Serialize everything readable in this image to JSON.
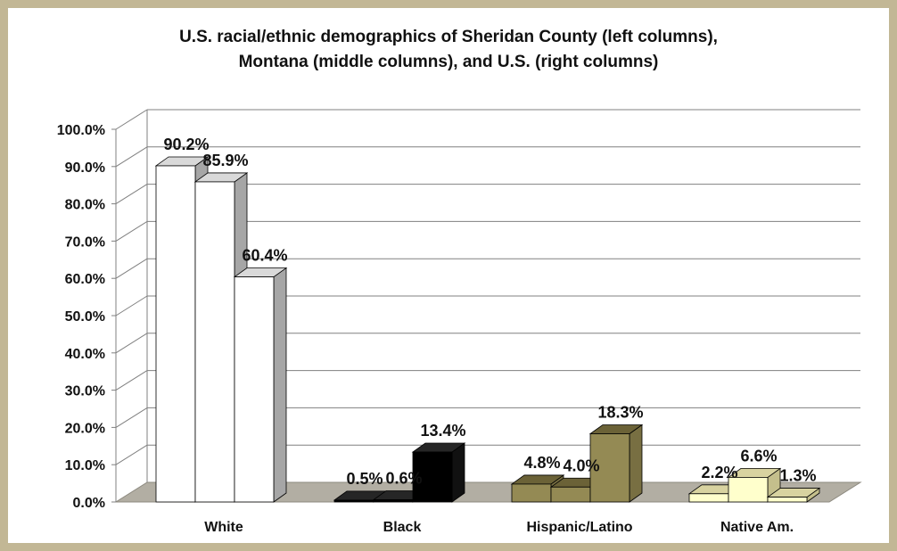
{
  "chart_data": {
    "type": "bar",
    "title_line1": "U.S. racial/ethnic demographics of Sheridan County (left columns),",
    "title_line2": "Montana (middle columns), and U.S. (right columns)",
    "categories": [
      "White",
      "Black",
      "Hispanic/Latino",
      "Native Am."
    ],
    "series": [
      {
        "values": [
          90.2,
          0.5,
          4.8,
          2.2
        ]
      },
      {
        "values": [
          85.9,
          0.6,
          4.0,
          6.6
        ]
      },
      {
        "values": [
          60.4,
          13.4,
          18.3,
          1.3
        ]
      }
    ],
    "data_labels": [
      [
        "90.2%",
        "85.9%",
        "60.4%"
      ],
      [
        "0.5%",
        "0.6%",
        "13.4%"
      ],
      [
        "4.8%",
        "4.0%",
        "18.3%"
      ],
      [
        "2.2%",
        "6.6%",
        "1.3%"
      ]
    ],
    "y_ticks": [
      "0.0%",
      "10.0%",
      "20.0%",
      "30.0%",
      "40.0%",
      "50.0%",
      "60.0%",
      "70.0%",
      "80.0%",
      "90.0%",
      "100.0%"
    ],
    "ylim": [
      0,
      100
    ],
    "grid": true,
    "category_colors": [
      {
        "face": "#ffffff",
        "top": "#d9d9d9",
        "side": "#a6a6a6"
      },
      {
        "face": "#000000",
        "top": "#262626",
        "side": "#111111"
      },
      {
        "face": "#948a54",
        "top": "#6b6237",
        "side": "#786f42"
      },
      {
        "face": "#ffffcc",
        "top": "#d8d3a0",
        "side": "#c4bf8c"
      }
    ],
    "floor_color": "#b2aea3",
    "frame_color": "#c2b795"
  }
}
